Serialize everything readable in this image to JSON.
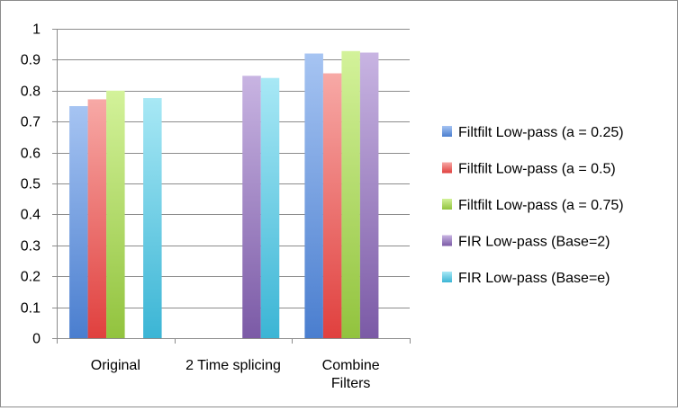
{
  "chart_data": {
    "type": "bar",
    "title": "",
    "xlabel": "",
    "ylabel": "",
    "ylim": [
      0,
      1
    ],
    "yticks": [
      "0",
      "0.1",
      "0.2",
      "0.3",
      "0.4",
      "0.5",
      "0.6",
      "0.7",
      "0.8",
      "0.9",
      "1"
    ],
    "grid": true,
    "legend_position": "right",
    "categories": [
      [
        "Original"
      ],
      [
        "2 Time splicing"
      ],
      [
        "Combine",
        "Filters"
      ]
    ],
    "series": [
      {
        "name": "Filtfilt Low-pass (a = 0.25)",
        "color": "#4a7ecf",
        "color_light": "#a6c4f2",
        "values": [
          0.75,
          null,
          0.92
        ]
      },
      {
        "name": "Filtfilt Low-pass (a = 0.5)",
        "color": "#e0403e",
        "color_light": "#f7a9a6",
        "values": [
          0.772,
          null,
          0.856
        ]
      },
      {
        "name": "Filtfilt Low-pass (a = 0.75)",
        "color": "#92c33e",
        "color_light": "#d3f29a",
        "values": [
          0.8,
          null,
          0.928
        ]
      },
      {
        "name": "FIR Low-pass (Base=2)",
        "color": "#7b5aa6",
        "color_light": "#c8b4e2",
        "values": [
          null,
          0.848,
          0.923
        ]
      },
      {
        "name": "FIR Low-pass (Base=e)",
        "color": "#3bb5d5",
        "color_light": "#a8e8f5",
        "values": [
          0.776,
          0.841,
          null
        ]
      }
    ]
  }
}
